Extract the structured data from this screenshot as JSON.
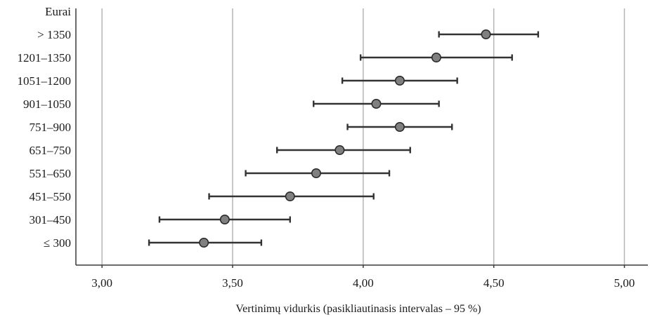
{
  "chart_data": {
    "type": "scatter",
    "orientation": "horizontal",
    "y_axis_header": "Eurai",
    "xlabel": "Vertinimų vidurkis (pasikliautinasis intervalas – 95 %)",
    "xlim": [
      2.9,
      5.09
    ],
    "x_ticks": [
      3.0,
      3.5,
      4.0,
      4.5,
      5.0
    ],
    "x_tick_labels": [
      "3,00",
      "3,50",
      "4,00",
      "4,50",
      "5,00"
    ],
    "grid": "vertical",
    "categories": [
      "> 1350",
      "1201–1350",
      "1051–1200",
      "901–1050",
      "751–900",
      "651–750",
      "551–650",
      "451–550",
      "301–450",
      "≤ 300"
    ],
    "series": [
      {
        "mean": [
          4.47,
          4.28,
          4.14,
          4.05,
          4.14,
          3.91,
          3.82,
          3.72,
          3.47,
          3.39
        ],
        "lower": [
          4.29,
          3.99,
          3.92,
          3.81,
          3.94,
          3.67,
          3.55,
          3.41,
          3.22,
          3.18
        ],
        "upper": [
          4.67,
          4.57,
          4.36,
          4.29,
          4.34,
          4.18,
          4.1,
          4.04,
          3.72,
          3.61
        ]
      }
    ],
    "colors": {
      "point_fill": "#808080",
      "point_stroke": "#2b2b2b",
      "grid": "#b5b5b5",
      "axis": "#3a3a3a"
    }
  }
}
